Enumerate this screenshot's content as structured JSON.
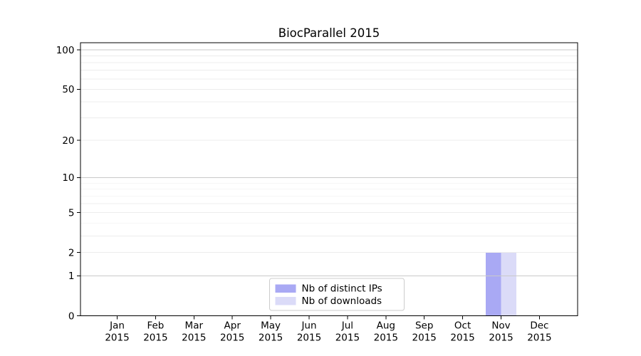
{
  "figure": {
    "background": "#ffffff"
  },
  "chart_data": {
    "type": "bar",
    "title": "BiocParallel 2015",
    "categories": [
      "Jan 2015",
      "Feb 2015",
      "Mar 2015",
      "Apr 2015",
      "May 2015",
      "Jun 2015",
      "Jul 2015",
      "Aug 2015",
      "Sep 2015",
      "Oct 2015",
      "Nov 2015",
      "Dec 2015"
    ],
    "series": [
      {
        "name": "Nb of distinct IPs",
        "color": "#a9a9f4",
        "values": [
          0,
          0,
          0,
          0,
          0,
          0,
          0,
          0,
          0,
          0,
          2,
          0
        ]
      },
      {
        "name": "Nb of downloads",
        "color": "#dbdbf8",
        "values": [
          0,
          0,
          0,
          0,
          0,
          0,
          0,
          0,
          0,
          0,
          2,
          0
        ]
      }
    ],
    "xlabel": "",
    "ylabel": "",
    "y_scale": "log1p",
    "y_ticks": [
      0,
      1,
      2,
      5,
      10,
      20,
      50,
      100
    ],
    "y_decade_gridlines": [
      1,
      10,
      100
    ],
    "y_minor_gridlines": [
      2,
      3,
      4,
      5,
      6,
      7,
      8,
      9,
      20,
      30,
      40,
      50,
      60,
      70,
      80,
      90
    ],
    "ylim": [
      0,
      113
    ],
    "grid": "horizontal",
    "legend_position": "inside-bottom-center"
  },
  "colors": {
    "spine": "#000000",
    "grid_decade": "#c9c9c9",
    "grid_minor": "#ececec",
    "legend_border": "#cccccc",
    "legend_background": "#ffffff",
    "text": "#000000"
  }
}
